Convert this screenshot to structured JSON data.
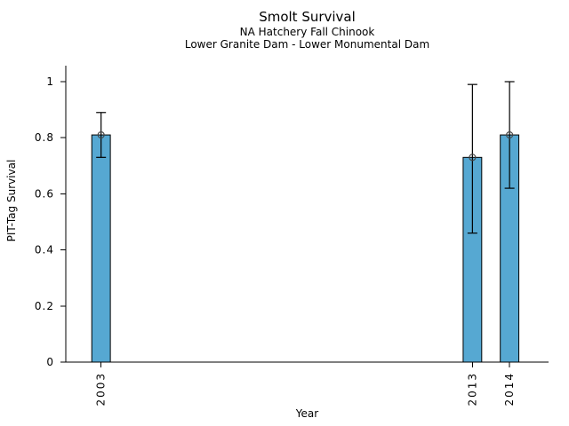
{
  "chart_data": {
    "type": "bar",
    "title": "Smolt Survival",
    "subtitle1": "NA Hatchery Fall Chinook",
    "subtitle2": "Lower Granite Dam - Lower Monumental Dam",
    "xlabel": "Year",
    "ylabel": "PIT-Tag Survival",
    "categories": [
      "2003",
      "2013",
      "2014"
    ],
    "x": [
      2003,
      2013,
      2014
    ],
    "values": [
      0.81,
      0.73,
      0.81
    ],
    "error_low": [
      0.73,
      0.46,
      0.62
    ],
    "error_high": [
      0.89,
      0.99,
      1.0
    ],
    "xlim": [
      2002.05,
      2015.05
    ],
    "ylim": [
      0,
      1.057
    ],
    "yticks": [
      0,
      0.2,
      0.4,
      0.6,
      0.8,
      1
    ],
    "ytick_labels": [
      "0",
      "0.2",
      "0.4",
      "0.6",
      "0.8",
      "1"
    ],
    "bar_width_x": 0.5,
    "bar_color": "#56a8d2",
    "bar_edge_color": "#000000",
    "error_color": "#000000",
    "marker": "open-circle",
    "marker_color": "#444444",
    "axis_color": "#000000",
    "grid": false
  }
}
